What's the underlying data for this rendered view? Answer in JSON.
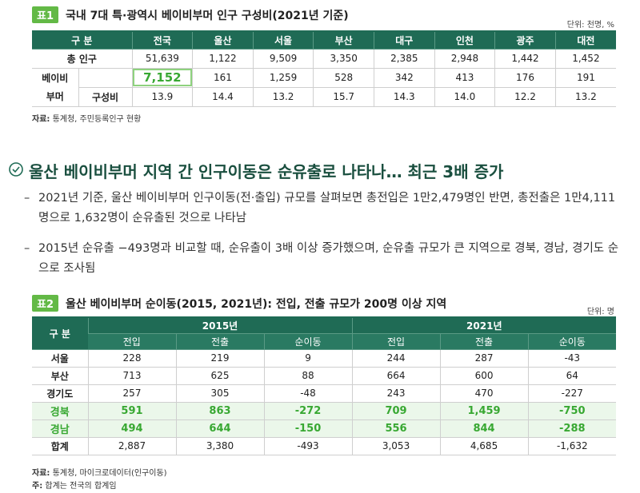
{
  "table1": {
    "label": "표1",
    "title": "국내 7대 특·광역시 베이비부머 인구 구성비(2021년 기준)",
    "unit": "단위: 천명, %",
    "header": [
      "구 분",
      "전국",
      "울산",
      "서울",
      "부산",
      "대구",
      "인천",
      "광주",
      "대전"
    ],
    "total_row": {
      "label": "총 인구",
      "values": [
        "51,639",
        "1,122",
        "9,509",
        "3,350",
        "2,385",
        "2,948",
        "1,442",
        "1,452"
      ]
    },
    "group_label": [
      "베이비",
      "부머"
    ],
    "group_rows": [
      {
        "label": null,
        "values": [
          "7,152",
          "161",
          "1,259",
          "528",
          "342",
          "413",
          "176",
          "191"
        ]
      },
      {
        "label": "구성비",
        "values": [
          "13.9",
          "14.4",
          "13.2",
          "15.7",
          "14.3",
          "14.0",
          "12.2",
          "13.2"
        ]
      }
    ],
    "source": {
      "label": "자료:",
      "text": " 통계청, 주민등록인구 현황"
    }
  },
  "heading": "울산 베이비부머 지역 간 인구이동은 순유출로 나타나… 최근 3배 증가",
  "bullet": "–",
  "paragraphs": [
    "2021년 기준, 울산 베이비부머 인구이동(전·출입) 규모를 살펴보면 총전입은 1만2,479명인 반면, 총전출은 1만4,111명으로 1,632명이 순유출된 것으로 나타남",
    "2015년 순유출 −493명과 비교할 때, 순유출이 3배 이상 증가했으며, 순유출 규모가 큰 지역으로 경북, 경남, 경기도 순으로 조사됨"
  ],
  "table2": {
    "label": "표2",
    "title": "울산 베이비부머 순이동(2015, 2021년): 전입, 전출 규모가 200명 이상 지역",
    "unit": "단위: 명",
    "corner": "구 분",
    "years": [
      "2015년",
      "2021년"
    ],
    "subheader": [
      "전입",
      "전출",
      "순이동",
      "전입",
      "전출",
      "순이동"
    ],
    "rows": [
      {
        "label": "서울",
        "values": [
          "228",
          "219",
          "9",
          "244",
          "287",
          "-43"
        ],
        "highlight": false
      },
      {
        "label": "부산",
        "values": [
          "713",
          "625",
          "88",
          "664",
          "600",
          "64"
        ],
        "highlight": false
      },
      {
        "label": "경기도",
        "values": [
          "257",
          "305",
          "-48",
          "243",
          "470",
          "-227"
        ],
        "highlight": false
      },
      {
        "label": "경북",
        "values": [
          "591",
          "863",
          "-272",
          "709",
          "1,459",
          "-750"
        ],
        "highlight": true
      },
      {
        "label": "경남",
        "values": [
          "494",
          "644",
          "-150",
          "556",
          "844",
          "-288"
        ],
        "highlight": true
      },
      {
        "label": "합계",
        "values": [
          "2,887",
          "3,380",
          "-493",
          "3,053",
          "4,685",
          "-1,632"
        ],
        "highlight": false
      }
    ],
    "source": {
      "label": "자료:",
      "text": " 통계청, 마이크로데이터(인구이동)"
    },
    "note": {
      "label": "주:",
      "text": " 합계는 전국의 합계임"
    }
  }
}
